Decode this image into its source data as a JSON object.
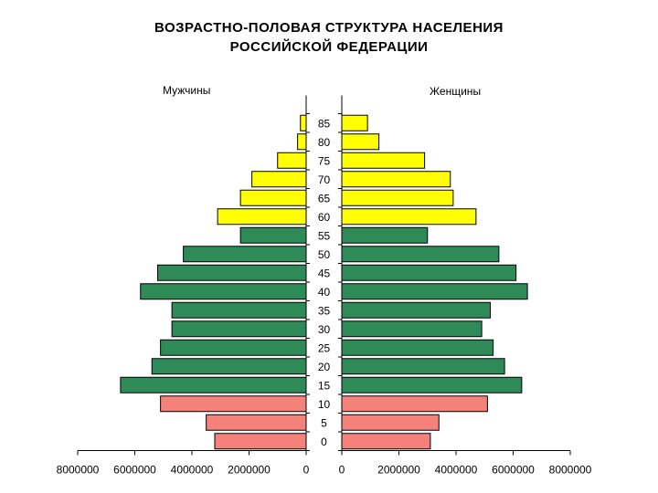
{
  "chart_data": {
    "type": "bar",
    "subtype": "population-pyramid",
    "title_lines": [
      "ВОЗРАСТНО-ПОЛОВАЯ СТРУКТУРА НАСЕЛЕНИЯ",
      "РОССИЙСКОЙ ФЕДЕРАЦИИ"
    ],
    "categories": [
      "0",
      "5",
      "10",
      "15",
      "20",
      "25",
      "30",
      "35",
      "40",
      "45",
      "50",
      "55",
      "60",
      "65",
      "70",
      "75",
      "80",
      "85"
    ],
    "series": [
      {
        "name": "Мужчины",
        "values": [
          3200000,
          3500000,
          5100000,
          6500000,
          5400000,
          5100000,
          4700000,
          4700000,
          5800000,
          5200000,
          4300000,
          2300000,
          3100000,
          2300000,
          1900000,
          1000000,
          300000,
          200000
        ]
      },
      {
        "name": "Женщины",
        "values": [
          3100000,
          3400000,
          5100000,
          6300000,
          5700000,
          5300000,
          4900000,
          5200000,
          6500000,
          6100000,
          5500000,
          3000000,
          4700000,
          3900000,
          3800000,
          2900000,
          1300000,
          900000
        ]
      }
    ],
    "age_group_colors": [
      "#f4827a",
      "#f4827a",
      "#f4827a",
      "#2e8b57",
      "#2e8b57",
      "#2e8b57",
      "#2e8b57",
      "#2e8b57",
      "#2e8b57",
      "#2e8b57",
      "#2e8b57",
      "#2e8b57",
      "#ffff00",
      "#ffff00",
      "#ffff00",
      "#ffff00",
      "#ffff00",
      "#ffff00"
    ],
    "xlim": [
      0,
      8000000
    ],
    "x_ticks": [
      0,
      2000000,
      4000000,
      6000000,
      8000000
    ],
    "x_tick_labels": [
      "0",
      "2000000",
      "4000000",
      "6000000",
      "8000000"
    ],
    "grid": false,
    "bar_outline_color": "#000000"
  }
}
